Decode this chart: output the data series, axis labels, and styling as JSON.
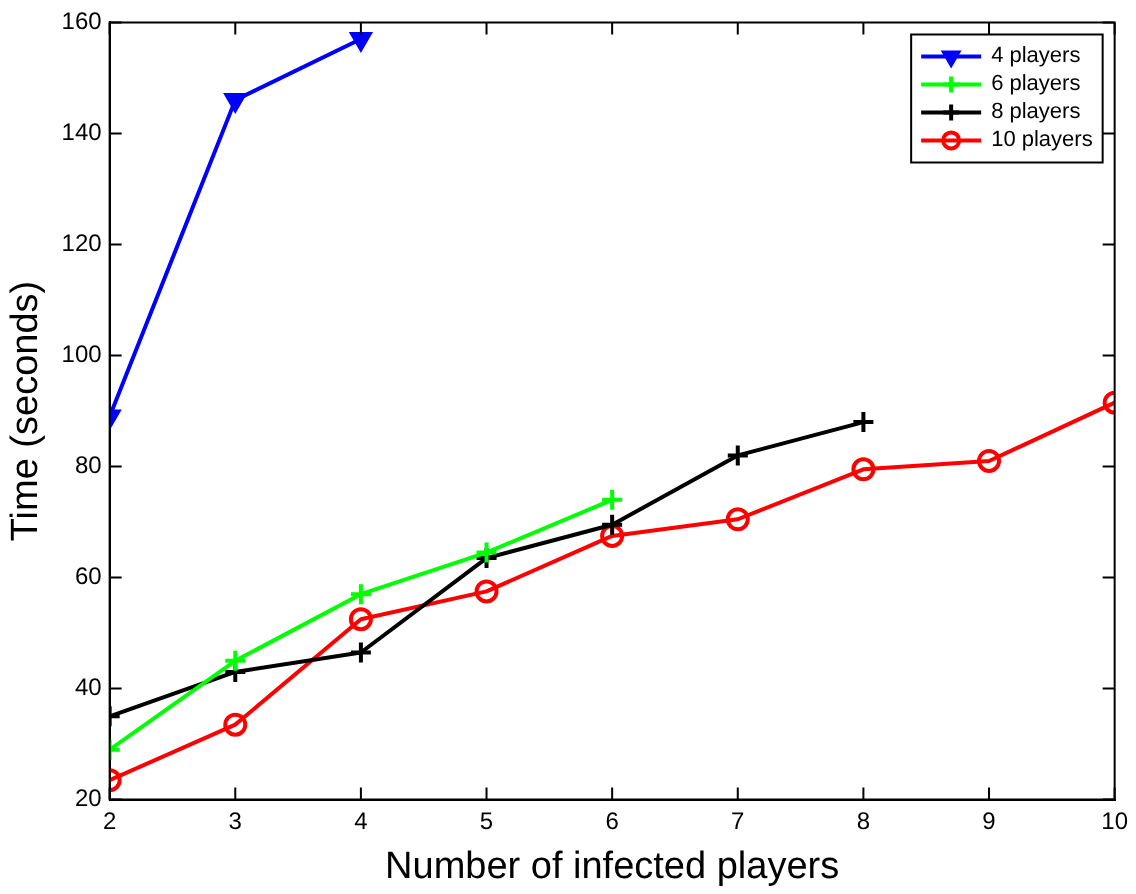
{
  "chart_data": {
    "type": "line",
    "xlabel": "Number of infected players",
    "ylabel": "Time (seconds)",
    "xlim": [
      2,
      10
    ],
    "xticks": [
      2,
      3,
      4,
      5,
      6,
      7,
      8,
      9,
      10
    ],
    "ylim": [
      20,
      160
    ],
    "yticks": [
      20,
      40,
      60,
      80,
      100,
      120,
      140,
      160
    ],
    "grid": false,
    "legend": "top right",
    "line_style": "solid",
    "series": [
      {
        "name": "4 players",
        "color": "#0000ff",
        "marker": "triangle",
        "x": [
          2,
          3,
          4
        ],
        "values": [
          89,
          146,
          157
        ]
      },
      {
        "name": "6 players",
        "color": "#00ff00",
        "marker": "cross",
        "x": [
          2,
          3,
          4,
          5,
          6
        ],
        "values": [
          29,
          45,
          57,
          64.5,
          74
        ]
      },
      {
        "name": "8 players",
        "color": "#000000",
        "marker": "cross",
        "x": [
          2,
          3,
          4,
          5,
          6,
          7,
          8
        ],
        "values": [
          35,
          43,
          46.5,
          63.5,
          69.5,
          82,
          88
        ]
      },
      {
        "name": "10 players",
        "color": "#ff0000",
        "marker": "circle",
        "x": [
          2,
          3,
          4,
          5,
          6,
          7,
          8,
          9,
          10
        ],
        "values": [
          23.5,
          33.5,
          52.5,
          57.5,
          67.5,
          70.5,
          79.5,
          81,
          91.5
        ]
      }
    ]
  }
}
